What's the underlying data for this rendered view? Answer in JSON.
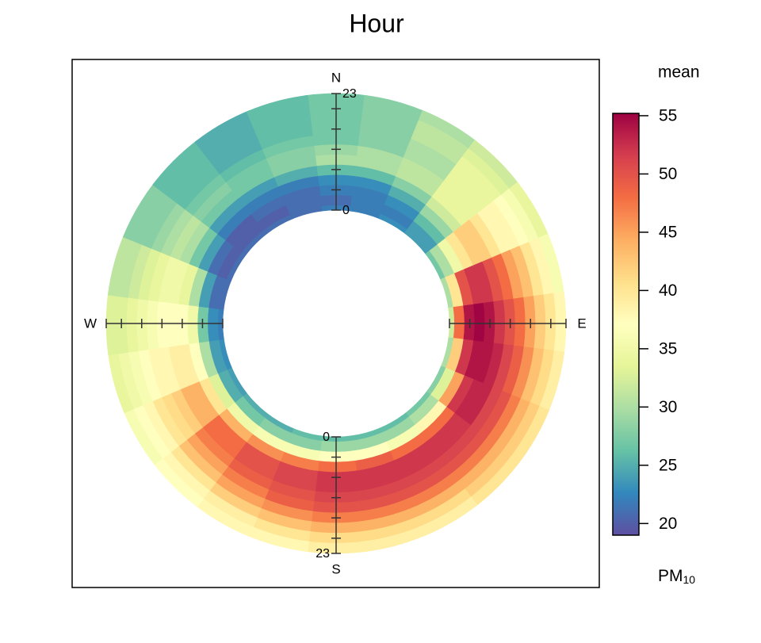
{
  "chart_data": {
    "type": "polar-annulus",
    "title": "Hour",
    "legend_title": "mean",
    "legend_unit": {
      "main": "PM",
      "sub": "10"
    },
    "compass": [
      "N",
      "E",
      "S",
      "W"
    ],
    "rlim": [
      0,
      23
    ],
    "rticks": [
      0,
      {
        "value": 4,
        "label": null
      },
      {
        "value": 8,
        "label": null
      },
      {
        "value": 12,
        "label": null
      },
      {
        "value": 16,
        "label": null
      },
      {
        "value": 20,
        "label": null
      },
      23
    ],
    "zlim": [
      19,
      55.2
    ],
    "zticks": [
      20,
      25,
      30,
      35,
      40,
      45,
      50,
      55
    ],
    "colorscale": [
      "#5e4fa2",
      "#3288bd",
      "#66c2a5",
      "#abdda4",
      "#e6f598",
      "#ffffbf",
      "#fee08b",
      "#fdae61",
      "#f46d43",
      "#d53e4f",
      "#9e0142"
    ],
    "hours": [
      0,
      2,
      4,
      6,
      8,
      10,
      12,
      14,
      16,
      18,
      20,
      22
    ],
    "directions": [
      0,
      15,
      30,
      45,
      60,
      75,
      90,
      105,
      120,
      135,
      150,
      165,
      180,
      195,
      210,
      225,
      240,
      255,
      270,
      285,
      300,
      315,
      330,
      345
    ],
    "values": [
      [
        22,
        22,
        23,
        24,
        27,
        30,
        32,
        30,
        28,
        27,
        26,
        26,
        26,
        26,
        25,
        25,
        24,
        23,
        22,
        21,
        21,
        21,
        21,
        21
      ],
      [
        21,
        22,
        22,
        24,
        30,
        40,
        48,
        42,
        33,
        30,
        29,
        29,
        29,
        28,
        28,
        27,
        25,
        24,
        23,
        21,
        20,
        20,
        20,
        21
      ],
      [
        22,
        22,
        23,
        26,
        35,
        50,
        54,
        52,
        45,
        38,
        36,
        37,
        37,
        36,
        36,
        35,
        33,
        30,
        27,
        24,
        21,
        20,
        21,
        21
      ],
      [
        23,
        23,
        25,
        29,
        40,
        52,
        55,
        54,
        52,
        48,
        48,
        49,
        48,
        47,
        46,
        44,
        40,
        37,
        35,
        30,
        24,
        22,
        22,
        22
      ],
      [
        26,
        26,
        28,
        32,
        42,
        52,
        54,
        54,
        53,
        52,
        52,
        52,
        52,
        51,
        50,
        48,
        44,
        39,
        37,
        34,
        27,
        24,
        24,
        25
      ],
      [
        30,
        30,
        31,
        34,
        42,
        50,
        52,
        53,
        53,
        52,
        52,
        52,
        52,
        51,
        50,
        48,
        44,
        39,
        37,
        35,
        30,
        27,
        27,
        28
      ],
      [
        29,
        30,
        31,
        34,
        40,
        48,
        50,
        51,
        51,
        51,
        51,
        51,
        51,
        50,
        49,
        47,
        42,
        38,
        37,
        35,
        31,
        28,
        27,
        28
      ],
      [
        27,
        28,
        30,
        34,
        38,
        45,
        48,
        49,
        50,
        50,
        50,
        50,
        50,
        49,
        47,
        45,
        41,
        38,
        36,
        34,
        30,
        27,
        26,
        27
      ],
      [
        27,
        28,
        30,
        34,
        38,
        43,
        45,
        46,
        47,
        47,
        47,
        47,
        47,
        46,
        45,
        43,
        40,
        37,
        35,
        33,
        29,
        26,
        25,
        26
      ],
      [
        27,
        28,
        31,
        34,
        37,
        40,
        42,
        43,
        44,
        44,
        44,
        44,
        44,
        43,
        42,
        40,
        38,
        36,
        34,
        32,
        28,
        26,
        25,
        26
      ],
      [
        27,
        28,
        31,
        33,
        36,
        38,
        40,
        41,
        42,
        42,
        41,
        41,
        41,
        40,
        39,
        38,
        37,
        35,
        33,
        31,
        28,
        26,
        25,
        26
      ],
      [
        27,
        28,
        30,
        32,
        34,
        36,
        38,
        39,
        40,
        40,
        39,
        39,
        39,
        38,
        38,
        37,
        36,
        34,
        33,
        31,
        28,
        26,
        25,
        26
      ]
    ]
  }
}
